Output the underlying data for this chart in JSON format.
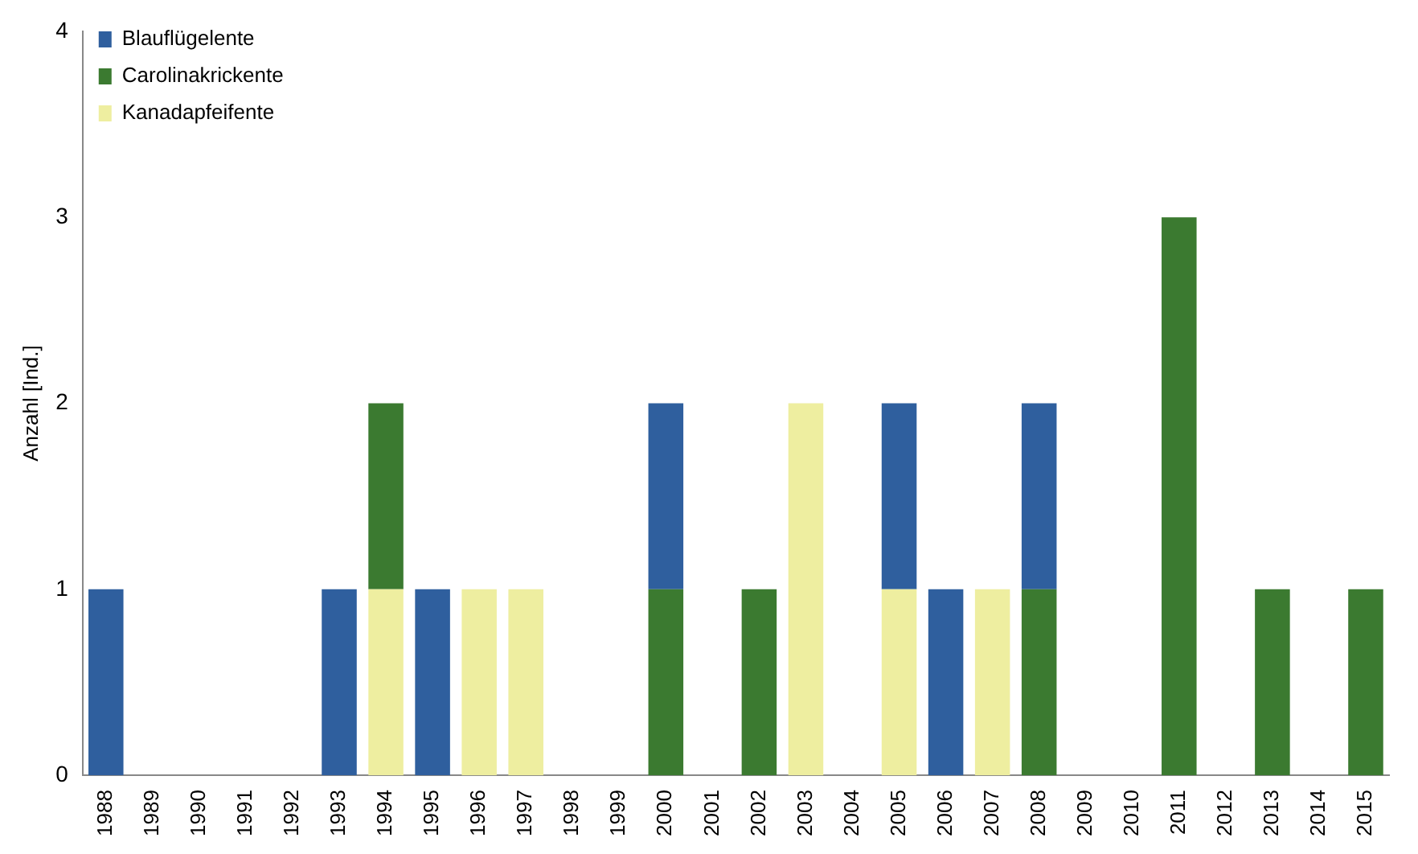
{
  "chart_data": {
    "type": "bar",
    "ylabel": "Anzahl [Ind.]",
    "stacked": true,
    "legend": "top left",
    "grid": false,
    "categories": [
      "1988",
      "1989",
      "1990",
      "1991",
      "1992",
      "1993",
      "1994",
      "1995",
      "1996",
      "1997",
      "1998",
      "1999",
      "2000",
      "2001",
      "2002",
      "2003",
      "2004",
      "2005",
      "2006",
      "2007",
      "2008",
      "2009",
      "2010",
      "2011",
      "2012",
      "2013",
      "2014",
      "2015"
    ],
    "series": [
      {
        "name": "Kanadapfeifente",
        "color": "#eeeea0",
        "values": [
          0,
          0,
          0,
          0,
          0,
          0,
          1,
          0,
          1,
          1,
          0,
          0,
          0,
          0,
          0,
          2,
          0,
          1,
          0,
          1,
          0,
          0,
          0,
          0,
          0,
          0,
          0,
          0
        ]
      },
      {
        "name": "Carolinakrickente",
        "color": "#3b7a30",
        "values": [
          0,
          0,
          0,
          0,
          0,
          0,
          1,
          0,
          0,
          0,
          0,
          0,
          1,
          0,
          1,
          0,
          0,
          0,
          0,
          0,
          1,
          0,
          0,
          3,
          0,
          1,
          0,
          1
        ]
      },
      {
        "name": "Blauflügelente",
        "color": "#2f5f9e",
        "values": [
          1,
          0,
          0,
          0,
          0,
          1,
          0,
          1,
          0,
          0,
          0,
          0,
          1,
          0,
          0,
          0,
          0,
          1,
          1,
          0,
          1,
          0,
          0,
          0,
          0,
          0,
          0,
          0
        ]
      }
    ],
    "ylim": [
      0,
      4
    ],
    "yticks": [
      0,
      1,
      2,
      3,
      4
    ]
  }
}
